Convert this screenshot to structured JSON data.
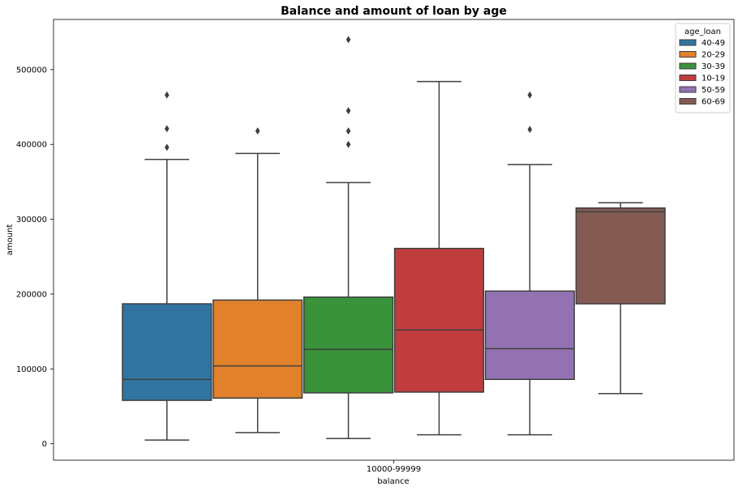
{
  "chart_data": {
    "type": "box",
    "title": "Balance and amount of loan by age",
    "xlabel": "balance",
    "ylabel": "amount",
    "categories": [
      "10000-99999"
    ],
    "ylim": [
      -22000,
      567000
    ],
    "yticks": [
      0,
      100000,
      200000,
      300000,
      400000,
      500000
    ],
    "ytick_labels": [
      "0",
      "100000",
      "200000",
      "300000",
      "400000",
      "500000"
    ],
    "grid": false,
    "legend": {
      "title": "age_loan",
      "placement": "top-right"
    },
    "series": [
      {
        "name": "40-49",
        "color": "#3274a1",
        "whisker_low": 5000,
        "q1": 58000,
        "median": 86000,
        "q3": 187000,
        "whisker_high": 380000,
        "outliers": [
          396000,
          421000,
          466000
        ]
      },
      {
        "name": "20-29",
        "color": "#e1812c",
        "whisker_low": 15000,
        "q1": 61000,
        "median": 104000,
        "q3": 192000,
        "whisker_high": 388000,
        "outliers": [
          418000
        ]
      },
      {
        "name": "30-39",
        "color": "#3a923a",
        "whisker_low": 7000,
        "q1": 68000,
        "median": 126000,
        "q3": 196000,
        "whisker_high": 349000,
        "outliers": [
          400000,
          418000,
          445000,
          540000
        ]
      },
      {
        "name": "10-19",
        "color": "#c03d3e",
        "whisker_low": 12000,
        "q1": 69000,
        "median": 152000,
        "q3": 261000,
        "whisker_high": 484000,
        "outliers": []
      },
      {
        "name": "50-59",
        "color": "#9372b2",
        "whisker_low": 12000,
        "q1": 86000,
        "median": 127000,
        "q3": 204000,
        "whisker_high": 373000,
        "outliers": [
          420000,
          466000
        ]
      },
      {
        "name": "60-69",
        "color": "#845b53",
        "whisker_low": 67000,
        "q1": 187000,
        "median": 310000,
        "q3": 315000,
        "whisker_high": 322000,
        "outliers": []
      }
    ]
  }
}
